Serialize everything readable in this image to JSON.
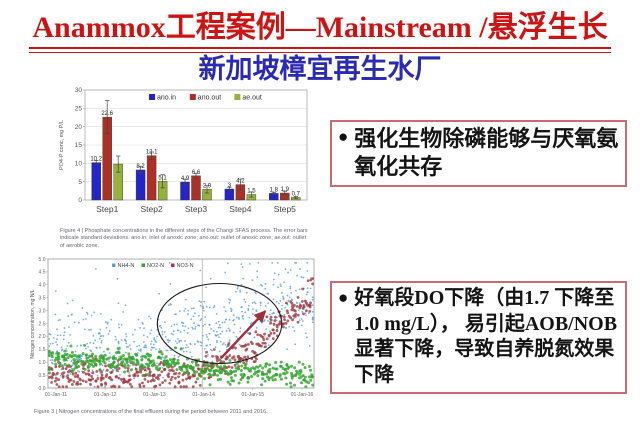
{
  "title": "Anammox工程案例—Mainstream /悬浮生长",
  "subtitle": "新加坡樟宜再生水厂",
  "bullet_char": "●",
  "bullets": [
    {
      "text": "强化生物除磷能够与厌氧氨氧化共存"
    },
    {
      "text": "好氧段DO下降（由1.7 下降至1.0 mg/L）， 易引起AOB/NOB显著下降，导致自养脱氮效果下降"
    }
  ],
  "colors": {
    "title_red": "#cc1414",
    "subtitle_blue": "#2a2ab2",
    "box_border": "#c96b74",
    "caption_gray": "#667",
    "arrow_red": "#9e2f3e"
  },
  "chart_data": [
    {
      "type": "bar",
      "figure_label": "Figure 4",
      "categories": [
        "Step1",
        "Step2",
        "Step3",
        "Step4",
        "Step5"
      ],
      "series": [
        {
          "name": "ano.in",
          "color": "#2424c8",
          "values": [
            10.2,
            8.2,
            4.9,
            3,
            1.8
          ],
          "errors": [
            0.6,
            1.0,
            0.8,
            0.5,
            0.3
          ],
          "labels": [
            "10.2",
            "8.2",
            "4.9",
            "3",
            "1.8"
          ]
        },
        {
          "name": "ano.out",
          "color": "#ab3026",
          "values": [
            22.6,
            12.1,
            6.6,
            4.2,
            1.9
          ],
          "errors": [
            4.5,
            1.0,
            0.7,
            1.5,
            0.5
          ],
          "labels": [
            "22.6",
            "12.1",
            "6.6",
            "4.2",
            "1.9"
          ]
        },
        {
          "name": "ae.out",
          "color": "#96b23c",
          "values": [
            9.8,
            5.1,
            2.9,
            1.5,
            0.7
          ],
          "errors": [
            2.2,
            1.8,
            1.0,
            0.7,
            0.3
          ],
          "labels": [
            "",
            "5.1",
            "2.9",
            "1.5",
            "0.7"
          ]
        }
      ],
      "ylabel": "PO4-P conc, mg P/L",
      "ylim": [
        0,
        30
      ],
      "yticks": [
        0,
        5,
        10,
        15,
        20,
        25,
        30
      ],
      "grid": true,
      "legend_position": "top",
      "caption": "Figure 4 | Phosphate concentrations in the different steps of the Changi SFAS process. The error bars indicate standard deviations. ano.in: inlet of anoxic zone; ano.out: outlet of anoxic zone; ae.out: outlet of aerobic zone."
    },
    {
      "type": "scatter",
      "figure_label": "Figure 3",
      "ylabel": "Nitrogen concentration, mg N/L",
      "ylim": [
        0,
        5
      ],
      "yticks": [
        "0.0",
        "0.5",
        "1.0",
        "1.5",
        "2.0",
        "2.5",
        "3.0",
        "3.5",
        "4.0",
        "4.5",
        "5.0"
      ],
      "xticks": [
        "01-Jan-11",
        "01-Jan-12",
        "01-Jan-13",
        "01-Jan-14",
        "01-Jan-15",
        "01-Jan-16"
      ],
      "grid": false,
      "legend_position": "top",
      "series": [
        {
          "name": "NH4-N",
          "color": "#5b9fd4",
          "dot": 0.9,
          "n": 680,
          "spread": 0.72,
          "high_tail": true,
          "trend": [
            [
              0,
              1.35
            ],
            [
              0.45,
              1.6
            ],
            [
              0.62,
              2.2
            ],
            [
              0.8,
              2.9
            ],
            [
              1,
              3.3
            ]
          ]
        },
        {
          "name": "NO3-N",
          "color": "#a43c44",
          "dot": 1.4,
          "n": 430,
          "spread": 0.3,
          "trend": [
            [
              0,
              0.5
            ],
            [
              0.55,
              0.6
            ],
            [
              0.75,
              1.4
            ],
            [
              0.95,
              3.2
            ],
            [
              1,
              3.6
            ]
          ]
        },
        {
          "name": "NO2-N",
          "color": "#35a52f",
          "dot": 1.5,
          "n": 430,
          "spread": 0.22,
          "trend": [
            [
              0,
              1.1
            ],
            [
              0.5,
              1.0
            ],
            [
              0.58,
              0.62
            ],
            [
              1,
              0.55
            ]
          ]
        }
      ],
      "legend_order": [
        "NH4-N",
        "NO2-N",
        "NO3-N"
      ],
      "annotations": {
        "vline_x_frac": 0.58,
        "ellipse": {
          "cx_frac": 0.645,
          "cy_val": 2.5,
          "rx_frac": 0.234,
          "ry_val": 1.55
        },
        "arrow": {
          "from": [
            0.65,
            1.15
          ],
          "to": [
            0.817,
            2.98
          ]
        }
      },
      "caption": "Figure 3 | Nitrogen concentrations of the final effluent during the period between 2011 and 2016."
    }
  ]
}
